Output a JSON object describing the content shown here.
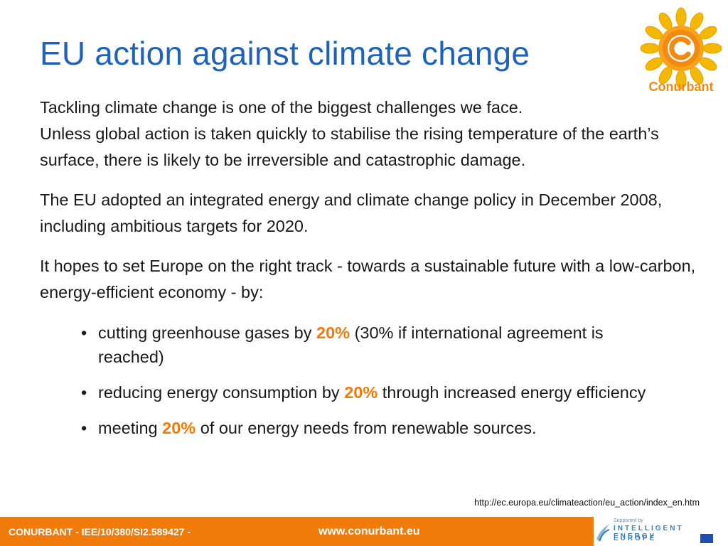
{
  "slide": {
    "title": "EU action against climate change",
    "logo_text": "Conurbant",
    "paragraphs": [
      [
        "Tackling climate change is one of the biggest challenges we face.",
        "Unless global action is taken quickly to stabilise the rising temperature of the earth’s surface, there is likely to be irreversible and catastrophic damage."
      ],
      [
        "The EU adopted an integrated energy and climate change policy in December 2008, including ambitious targets for 2020."
      ],
      [
        "It hopes to set Europe on the right track - towards a sustainable future with a low-carbon, energy-efficient economy - by:"
      ]
    ],
    "bullets": [
      {
        "before": "cutting greenhouse gases by ",
        "highlight": "20%",
        "after": " (30% if international agreement is reached)"
      },
      {
        "before": "reducing energy consumption by ",
        "highlight": "20%",
        "after": " through increased energy efficiency"
      },
      {
        "before": "meeting ",
        "highlight": "20%",
        "after": " of our energy needs from renewable sources."
      }
    ],
    "bullet_char": "•",
    "source_url": "http://ec.europa.eu/climateaction/eu_action/index_en.htm"
  },
  "footer": {
    "left_text": "CONURBANT - IEE/10/380/SI2.589427 -",
    "url": "www.conurbant.eu",
    "supporter_small": "Supported by",
    "supporter_line1": "INTELLIGENT ENERGY",
    "supporter_line2": "EUROPE"
  },
  "colors": {
    "title": "#1f63b8",
    "accent": "#f07b0a",
    "sun": "#f5b800"
  }
}
